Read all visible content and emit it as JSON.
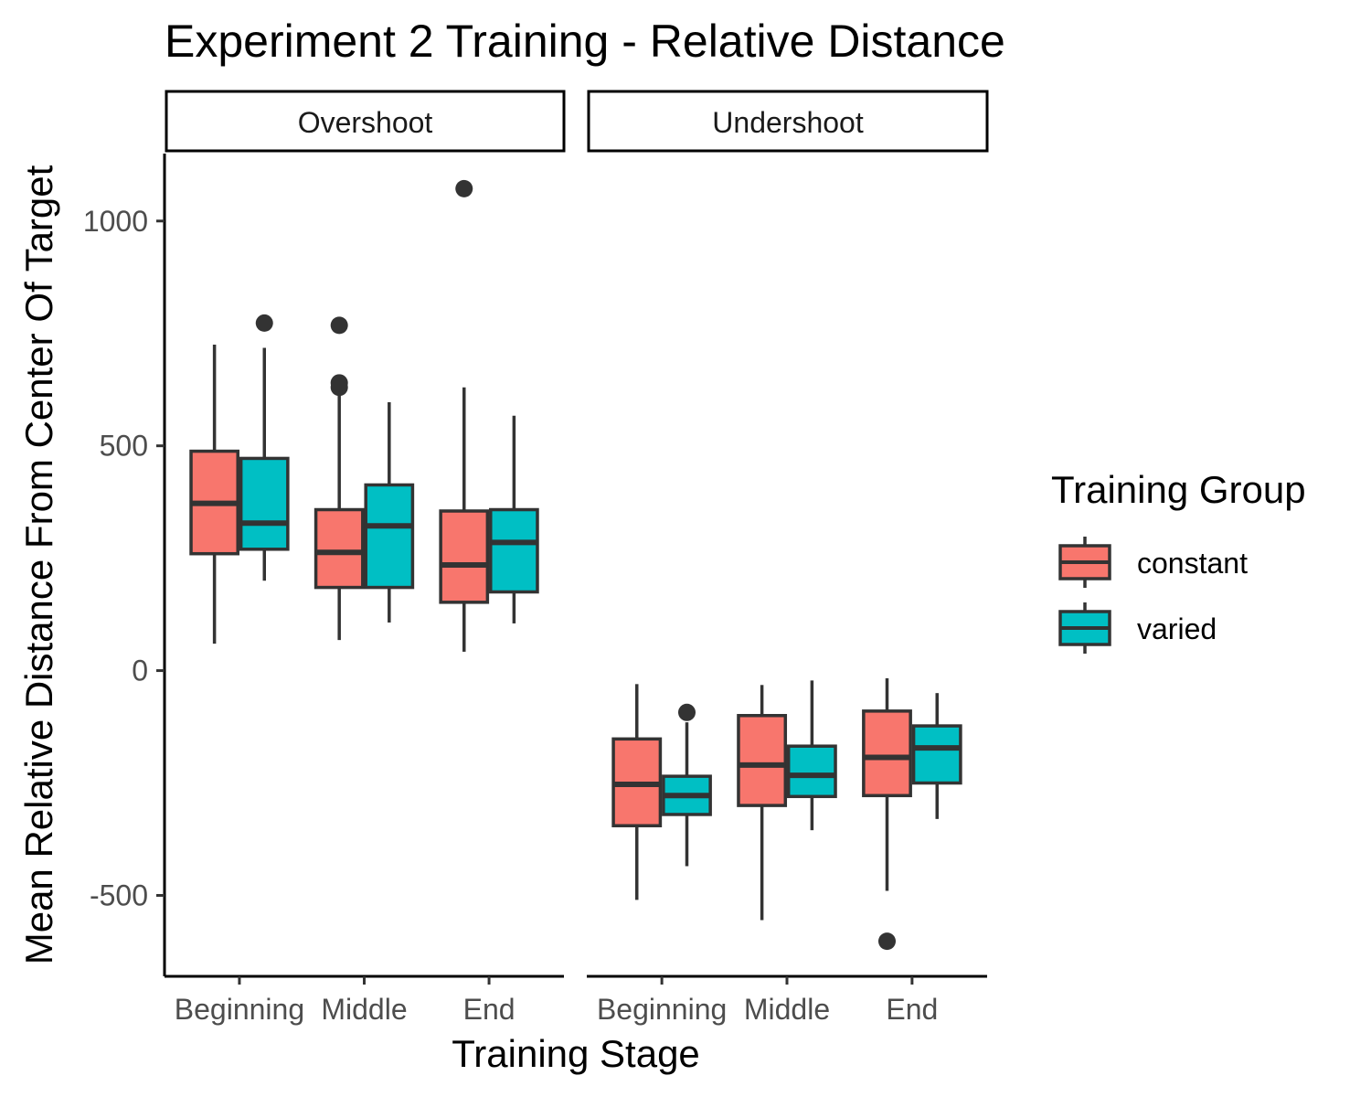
{
  "chart_data": {
    "type": "boxplot",
    "title": "Experiment 2 Training - Relative Distance",
    "xlabel": "Training Stage",
    "ylabel": "Mean Relative Distance From Center Of Target",
    "ylim": [
      -680,
      1150
    ],
    "y_ticks": [
      -500,
      0,
      500,
      1000
    ],
    "categories": [
      "Beginning",
      "Middle",
      "End"
    ],
    "facets": [
      "Overshoot",
      "Undershoot"
    ],
    "legend": {
      "title": "Training Group",
      "position": "right",
      "entries": [
        {
          "name": "constant",
          "color": "#F8766D"
        },
        {
          "name": "varied",
          "color": "#00BFC4"
        }
      ]
    },
    "grid": false,
    "panels": [
      {
        "facet": "Overshoot",
        "boxes": [
          {
            "category": "Beginning",
            "group": "constant",
            "whisker_low": 60,
            "q1": 260,
            "median": 372,
            "q3": 488,
            "whisker_high": 725,
            "outliers": []
          },
          {
            "category": "Beginning",
            "group": "varied",
            "whisker_low": 200,
            "q1": 270,
            "median": 328,
            "q3": 472,
            "whisker_high": 718,
            "outliers": [
              773
            ]
          },
          {
            "category": "Middle",
            "group": "constant",
            "whisker_low": 68,
            "q1": 185,
            "median": 263,
            "q3": 358,
            "whisker_high": 620,
            "outliers": [
              630,
              640,
              768
            ]
          },
          {
            "category": "Middle",
            "group": "varied",
            "whisker_low": 107,
            "q1": 185,
            "median": 322,
            "q3": 413,
            "whisker_high": 597,
            "outliers": []
          },
          {
            "category": "End",
            "group": "constant",
            "whisker_low": 42,
            "q1": 152,
            "median": 235,
            "q3": 355,
            "whisker_high": 630,
            "outliers": [
              1072
            ]
          },
          {
            "category": "End",
            "group": "varied",
            "whisker_low": 105,
            "q1": 175,
            "median": 285,
            "q3": 358,
            "whisker_high": 567,
            "outliers": []
          }
        ]
      },
      {
        "facet": "Undershoot",
        "boxes": [
          {
            "category": "Beginning",
            "group": "constant",
            "whisker_low": -510,
            "q1": -345,
            "median": -253,
            "q3": -152,
            "whisker_high": -30,
            "outliers": []
          },
          {
            "category": "Beginning",
            "group": "varied",
            "whisker_low": -435,
            "q1": -320,
            "median": -278,
            "q3": -235,
            "whisker_high": -115,
            "outliers": [
              -93
            ]
          },
          {
            "category": "Middle",
            "group": "constant",
            "whisker_low": -555,
            "q1": -300,
            "median": -210,
            "q3": -100,
            "whisker_high": -32,
            "outliers": []
          },
          {
            "category": "Middle",
            "group": "varied",
            "whisker_low": -355,
            "q1": -280,
            "median": -233,
            "q3": -168,
            "whisker_high": -22,
            "outliers": []
          },
          {
            "category": "End",
            "group": "constant",
            "whisker_low": -490,
            "q1": -278,
            "median": -193,
            "q3": -90,
            "whisker_high": -17,
            "outliers": [
              -602
            ]
          },
          {
            "category": "End",
            "group": "varied",
            "whisker_low": -330,
            "q1": -250,
            "median": -172,
            "q3": -123,
            "whisker_high": -50,
            "outliers": []
          }
        ]
      }
    ]
  }
}
